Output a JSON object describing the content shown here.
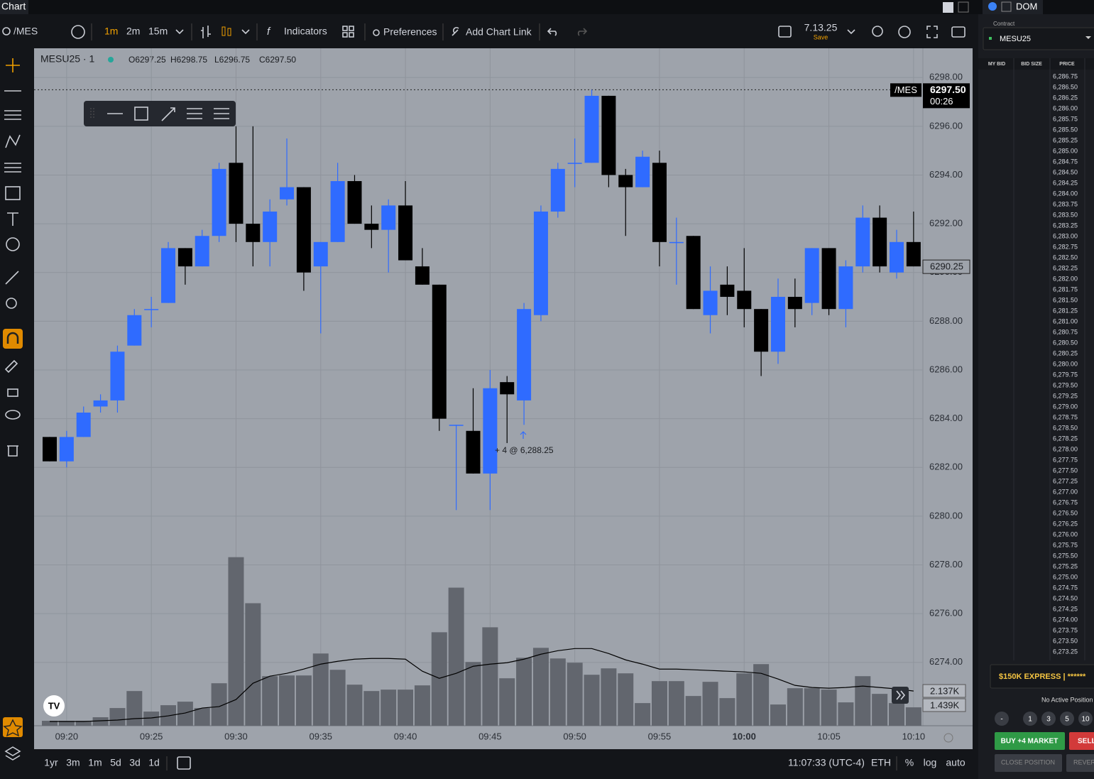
{
  "toolbar": {
    "tab": "Chart",
    "symbol": "/MES",
    "intervals": [
      "1m",
      "2m",
      "15m"
    ],
    "indicators": "Indicators",
    "preferences": "Preferences",
    "add_chart_link": "Add Chart Link",
    "layout_name": "7.13.25",
    "layout_status": "Save"
  },
  "chart_data": {
    "type": "candlestick",
    "legend_symbol": "MESU25 · 1",
    "legend_ohlc": [
      "O6297.25",
      "H6298.75",
      "L6296.75",
      "C6297.50"
    ],
    "categories": [
      null,
      "09:20",
      null,
      null,
      null,
      null,
      "09:25",
      null,
      null,
      null,
      null,
      "09:30",
      null,
      null,
      null,
      null,
      "09:35",
      null,
      null,
      null,
      null,
      "09:40",
      null,
      null,
      null,
      null,
      "09:45",
      null,
      null,
      null,
      null,
      "09:50",
      null,
      null,
      null,
      null,
      "09:55",
      null,
      null,
      null,
      null,
      "10:00",
      null,
      null,
      null,
      null,
      "10:05",
      null,
      null,
      null,
      null,
      "10:10"
    ],
    "open": [
      6283.25,
      6282.25,
      6283.25,
      6284.5,
      6284.75,
      6287.0,
      6288.5,
      6288.75,
      6291.0,
      6290.25,
      6291.5,
      6294.5,
      6292.0,
      6291.25,
      6293.0,
      6293.5,
      6290.25,
      6291.25,
      6293.75,
      6292.0,
      6291.75,
      6292.75,
      6290.25,
      6289.5,
      6283.75,
      6283.5,
      6281.75,
      6285.5,
      6284.75,
      6288.25,
      6292.5,
      6294.5,
      6294.5,
      6297.25,
      6294.0,
      6293.5,
      6294.5,
      6291.25,
      6291.5,
      6288.25,
      6289.5,
      6289.25,
      6288.5,
      6286.75,
      6289.0,
      6288.75,
      6291.0,
      6288.5,
      6290.25,
      6292.25,
      6290.0,
      6291.25
    ],
    "high": [
      6283.25,
      6283.5,
      6284.5,
      6285.0,
      6287.0,
      6288.5,
      6289.0,
      6291.25,
      6291.0,
      6291.75,
      6294.5,
      6296.0,
      6296.0,
      6293.0,
      6295.5,
      6293.5,
      6291.25,
      6294.5,
      6294.0,
      6292.75,
      6293.0,
      6293.75,
      6291.0,
      6289.5,
      6283.75,
      6285.25,
      6286.0,
      6285.75,
      6288.75,
      6292.75,
      6294.5,
      6295.5,
      6297.5,
      6297.25,
      6294.25,
      6295.0,
      6295.0,
      6292.25,
      6291.5,
      6290.25,
      6290.25,
      6291.0,
      6288.5,
      6289.75,
      6289.75,
      6291.0,
      6291.0,
      6290.5,
      6292.75,
      6292.75,
      6291.75,
      6292.5
    ],
    "low": [
      6282.25,
      6282.0,
      6283.25,
      6284.25,
      6284.25,
      6287.0,
      6287.75,
      6288.75,
      6289.5,
      6290.25,
      6291.25,
      6291.25,
      6290.25,
      6290.25,
      6292.75,
      6289.25,
      6287.5,
      6291.25,
      6292.0,
      6291.0,
      6290.0,
      6290.5,
      6289.5,
      6283.5,
      6280.25,
      6281.75,
      6280.25,
      6283.0,
      6283.75,
      6288.0,
      6292.25,
      6293.5,
      6294.5,
      6293.5,
      6291.5,
      6293.5,
      6290.25,
      6289.5,
      6288.5,
      6287.5,
      6288.25,
      6287.75,
      6285.75,
      6286.25,
      6287.75,
      6288.25,
      6288.25,
      6287.75,
      6290.0,
      6290.0,
      6289.75,
      6290.25
    ],
    "close": [
      6282.25,
      6283.25,
      6284.25,
      6284.75,
      6286.75,
      6288.25,
      6288.5,
      6291.0,
      6290.25,
      6291.5,
      6294.25,
      6292.0,
      6291.25,
      6292.5,
      6293.5,
      6290.0,
      6291.25,
      6293.75,
      6292.0,
      6291.75,
      6292.75,
      6290.5,
      6289.5,
      6284.0,
      6283.75,
      6281.75,
      6285.25,
      6285.0,
      6288.5,
      6292.5,
      6294.25,
      6294.5,
      6297.25,
      6294.0,
      6293.5,
      6294.75,
      6291.25,
      6291.25,
      6288.5,
      6289.25,
      6289.0,
      6288.5,
      6286.75,
      6289.0,
      6288.5,
      6291.0,
      6288.5,
      6290.25,
      6292.25,
      6290.25,
      6291.25,
      6290.25
    ],
    "up_color": "#2f6bff",
    "down_color": "#000000",
    "ylim": [
      6271.4,
      6299.2
    ],
    "yticks": [
      {
        "value": 6274,
        "label": "6274.00"
      },
      {
        "value": 6276,
        "label": "6276.00"
      },
      {
        "value": 6278,
        "label": "6278.00"
      },
      {
        "value": 6280,
        "label": "6280.00"
      },
      {
        "value": 6282,
        "label": "6282.00"
      },
      {
        "value": 6284,
        "label": "6284.00"
      },
      {
        "value": 6286,
        "label": "6286.00"
      },
      {
        "value": 6288,
        "label": "6288.00"
      },
      {
        "value": 6290,
        "label": "6290.00"
      },
      {
        "value": 6292,
        "label": "6292.00"
      },
      {
        "value": 6294,
        "label": "6294.00"
      },
      {
        "value": 6296,
        "label": "6296.00"
      },
      {
        "value": 6298,
        "label": "6298.00"
      }
    ],
    "grid": true,
    "volume": [
      308,
      308,
      308,
      528,
      1100,
      2156,
      880,
      1276,
      1496,
      1100,
      2640,
      10472,
      7612,
      3080,
      3124,
      3124,
      4488,
      3476,
      2552,
      2156,
      2244,
      2244,
      2508,
      5808,
      8580,
      3960,
      6116,
      2948,
      4224,
      4840,
      4180,
      3916,
      3168,
      3564,
      3256,
      1408,
      2772,
      2772,
      1848,
      2728,
      1716,
      3256,
      3828,
      1320,
      2332,
      2332,
      2244,
      1452,
      3080,
      1980,
      1408,
      1144
    ],
    "volume_ma": [
      264,
      264,
      264,
      308,
      352,
      440,
      484,
      616,
      792,
      1100,
      1188,
      1628,
      2640,
      3080,
      3256,
      3520,
      3828,
      4004,
      4136,
      4180,
      4180,
      4136,
      3388,
      2948,
      3256,
      3696,
      3828,
      3916,
      4136,
      4444,
      4664,
      4796,
      4796,
      4488,
      4092,
      3828,
      3520,
      3520,
      3476,
      3432,
      3388,
      3344,
      3256,
      2904,
      2508,
      2376,
      2332,
      2376,
      2464,
      2376,
      2288,
      2156
    ],
    "volume_ylim": [
      0,
      12000
    ],
    "volume_color": "#62666e",
    "volume_ma_color": "#000000",
    "symbol_label": "/MES",
    "last_price": {
      "value": 6297.5,
      "label": "6297.50"
    },
    "countdown": "00:26",
    "current_price": 6290.25,
    "volume_labels": [
      "2.137K",
      "1.439K"
    ],
    "trade_marker": "+ 4 @ 6,288.25"
  },
  "bottom_bar": {
    "ranges": [
      "1yr",
      "3m",
      "1m",
      "5d",
      "3d",
      "1d"
    ],
    "clock": "11:07:33 (UTC-4)",
    "session": "ETH",
    "percent": "%",
    "log": "log",
    "auto": "auto"
  },
  "dom": {
    "tab": "DOM",
    "contract_label": "Contract",
    "contract": "MESU25",
    "columns": [
      "MY BID",
      "BID SIZE",
      "PRICE"
    ],
    "prices": [
      "6,286.75",
      "6,286.50",
      "6,286.25",
      "6,286.00",
      "6,285.75",
      "6,285.50",
      "6,285.25",
      "6,285.00",
      "6,284.75",
      "6,284.50",
      "6,284.25",
      "6,284.00",
      "6,283.75",
      "6,283.50",
      "6,283.25",
      "6,283.00",
      "6,282.75",
      "6,282.50",
      "6,282.25",
      "6,282.00",
      "6,281.75",
      "6,281.50",
      "6,281.25",
      "6,281.00",
      "6,280.75",
      "6,280.50",
      "6,280.25",
      "6,280.00",
      "6,279.75",
      "6,279.50",
      "6,279.25",
      "6,279.00",
      "6,278.75",
      "6,278.50",
      "6,278.25",
      "6,278.00",
      "6,277.75",
      "6,277.50",
      "6,277.25",
      "6,277.00",
      "6,276.75",
      "6,276.50",
      "6,276.25",
      "6,276.00",
      "6,275.75",
      "6,275.50",
      "6,275.25",
      "6,275.00",
      "6,274.75",
      "6,274.50",
      "6,274.25",
      "6,274.00",
      "6,273.75",
      "6,273.50",
      "6,273.25"
    ],
    "account": "$150K EXPRESS | ******",
    "position": "No Active Position",
    "quantities": [
      "-",
      "1",
      "3",
      "5",
      "10"
    ],
    "buy": "BUY +4 MARKET",
    "sell": "SELL",
    "close": "CLOSE POSITION",
    "reverse": "REVER"
  }
}
